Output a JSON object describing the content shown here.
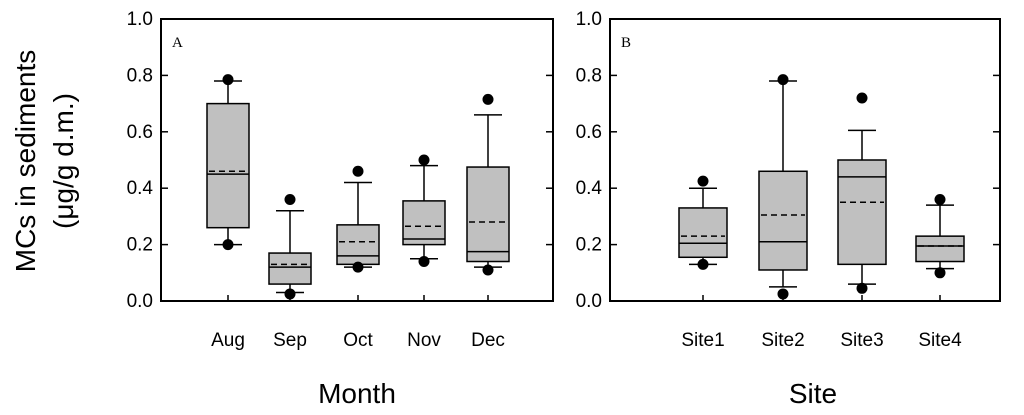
{
  "y_axis_title_line1": "MCs in sediments",
  "y_axis_title_line2": "(μg/g d.m.)",
  "chart_data": [
    {
      "type": "box",
      "panel_label": "A",
      "xlabel": "Month",
      "ylim": [
        0,
        1.0
      ],
      "yticks": [
        "0.0",
        "0.2",
        "0.4",
        "0.6",
        "0.8",
        "1.0"
      ],
      "categories": [
        "Aug",
        "Sep",
        "Oct",
        "Nov",
        "Dec"
      ],
      "boxes": [
        {
          "whisker_low": 0.2,
          "q1": 0.26,
          "median": 0.45,
          "mean": 0.46,
          "q3": 0.7,
          "whisker_high": 0.78,
          "outliers": [
            0.2,
            0.785
          ]
        },
        {
          "whisker_low": 0.03,
          "q1": 0.06,
          "median": 0.12,
          "mean": 0.13,
          "q3": 0.17,
          "whisker_high": 0.32,
          "outliers": [
            0.025,
            0.36
          ]
        },
        {
          "whisker_low": 0.12,
          "q1": 0.13,
          "median": 0.16,
          "mean": 0.21,
          "q3": 0.27,
          "whisker_high": 0.42,
          "outliers": [
            0.12,
            0.46
          ]
        },
        {
          "whisker_low": 0.15,
          "q1": 0.2,
          "median": 0.22,
          "mean": 0.265,
          "q3": 0.355,
          "whisker_high": 0.48,
          "outliers": [
            0.14,
            0.5
          ]
        },
        {
          "whisker_low": 0.12,
          "q1": 0.14,
          "median": 0.175,
          "mean": 0.28,
          "q3": 0.475,
          "whisker_high": 0.66,
          "outliers": [
            0.11,
            0.715
          ]
        }
      ]
    },
    {
      "type": "box",
      "panel_label": "B",
      "xlabel": "Site",
      "ylim": [
        0,
        1.0
      ],
      "yticks": [
        "0.0",
        "0.2",
        "0.4",
        "0.6",
        "0.8",
        "1.0"
      ],
      "categories": [
        "Site1",
        "Site2",
        "Site3",
        "Site4"
      ],
      "boxes": [
        {
          "whisker_low": 0.13,
          "q1": 0.155,
          "median": 0.205,
          "mean": 0.23,
          "q3": 0.33,
          "whisker_high": 0.4,
          "outliers": [
            0.13,
            0.425
          ]
        },
        {
          "whisker_low": 0.05,
          "q1": 0.11,
          "median": 0.21,
          "mean": 0.305,
          "q3": 0.46,
          "whisker_high": 0.78,
          "outliers": [
            0.025,
            0.785
          ]
        },
        {
          "whisker_low": 0.06,
          "q1": 0.13,
          "median": 0.44,
          "mean": 0.35,
          "q3": 0.5,
          "whisker_high": 0.605,
          "outliers": [
            0.045,
            0.72
          ]
        },
        {
          "whisker_low": 0.115,
          "q1": 0.14,
          "median": 0.195,
          "mean": 0.195,
          "q3": 0.23,
          "whisker_high": 0.34,
          "outliers": [
            0.1,
            0.36
          ]
        }
      ]
    }
  ]
}
